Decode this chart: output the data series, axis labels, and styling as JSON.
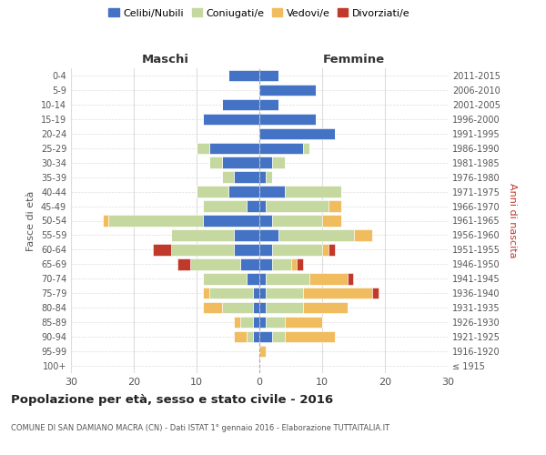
{
  "age_groups": [
    "100+",
    "95-99",
    "90-94",
    "85-89",
    "80-84",
    "75-79",
    "70-74",
    "65-69",
    "60-64",
    "55-59",
    "50-54",
    "45-49",
    "40-44",
    "35-39",
    "30-34",
    "25-29",
    "20-24",
    "15-19",
    "10-14",
    "5-9",
    "0-4"
  ],
  "birth_years": [
    "≤ 1915",
    "1916-1920",
    "1921-1925",
    "1926-1930",
    "1931-1935",
    "1936-1940",
    "1941-1945",
    "1946-1950",
    "1951-1955",
    "1956-1960",
    "1961-1965",
    "1966-1970",
    "1971-1975",
    "1976-1980",
    "1981-1985",
    "1986-1990",
    "1991-1995",
    "1996-2000",
    "2001-2005",
    "2006-2010",
    "2011-2015"
  ],
  "colors": {
    "celibi": "#4472c4",
    "coniugati": "#c5d8a0",
    "vedovi": "#f0bc5e",
    "divorziati": "#c0392b"
  },
  "maschi": {
    "celibi": [
      0,
      0,
      1,
      1,
      1,
      1,
      2,
      3,
      4,
      4,
      9,
      2,
      5,
      4,
      6,
      8,
      0,
      9,
      6,
      0,
      5
    ],
    "coniugati": [
      0,
      0,
      1,
      2,
      5,
      7,
      7,
      8,
      10,
      10,
      15,
      7,
      5,
      2,
      2,
      2,
      0,
      0,
      0,
      0,
      0
    ],
    "vedovi": [
      0,
      0,
      2,
      1,
      3,
      1,
      0,
      0,
      0,
      0,
      1,
      0,
      0,
      0,
      0,
      0,
      0,
      0,
      0,
      0,
      0
    ],
    "divorziati": [
      0,
      0,
      0,
      0,
      0,
      0,
      0,
      2,
      3,
      0,
      0,
      0,
      0,
      0,
      0,
      0,
      0,
      0,
      0,
      0,
      0
    ]
  },
  "femmine": {
    "celibi": [
      0,
      0,
      2,
      1,
      1,
      1,
      1,
      2,
      2,
      3,
      2,
      1,
      4,
      1,
      2,
      7,
      12,
      9,
      3,
      9,
      3
    ],
    "coniugati": [
      0,
      0,
      2,
      3,
      6,
      6,
      7,
      3,
      8,
      12,
      8,
      10,
      9,
      1,
      2,
      1,
      0,
      0,
      0,
      0,
      0
    ],
    "vedovi": [
      0,
      1,
      8,
      6,
      7,
      11,
      6,
      1,
      1,
      3,
      3,
      2,
      0,
      0,
      0,
      0,
      0,
      0,
      0,
      0,
      0
    ],
    "divorziati": [
      0,
      0,
      0,
      0,
      0,
      1,
      1,
      1,
      1,
      0,
      0,
      0,
      0,
      0,
      0,
      0,
      0,
      0,
      0,
      0,
      0
    ]
  },
  "title": "Popolazione per età, sesso e stato civile - 2016",
  "subtitle": "COMUNE DI SAN DAMIANO MACRA (CN) - Dati ISTAT 1° gennaio 2016 - Elaborazione TUTTAITALIA.IT",
  "ylabel_left": "Fasce di età",
  "ylabel_right": "Anni di nascita",
  "xlabel_maschi": "Maschi",
  "xlabel_femmine": "Femmine",
  "xlim": 30,
  "legend_labels": [
    "Celibi/Nubili",
    "Coniugati/e",
    "Vedovi/e",
    "Divorziati/e"
  ],
  "bg_color": "#ffffff",
  "grid_color": "#dddddd"
}
